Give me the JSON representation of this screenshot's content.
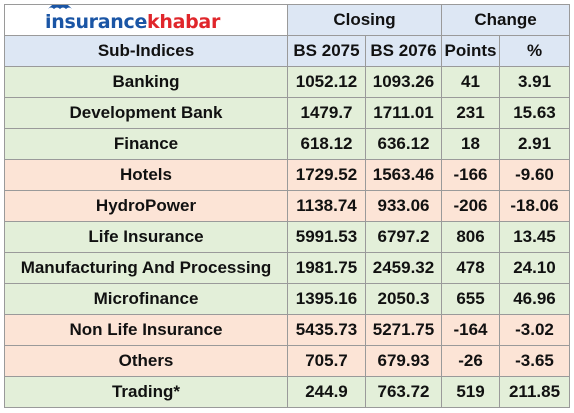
{
  "logo": {
    "part1": "insurance",
    "part2": "khabar",
    "colors": {
      "part1": "#1a55a5",
      "part2": "#e0262b"
    }
  },
  "header": {
    "group_closing": "Closing",
    "group_change": "Change",
    "col_subindices": "Sub-Indices",
    "col_bs2075": "BS 2075",
    "col_bs2076": "BS 2076",
    "col_points": "Points",
    "col_percent": "%"
  },
  "colors": {
    "header_bg": "#dde7f4",
    "positive_row_bg": "#e3efd9",
    "negative_row_bg": "#fce4d6"
  },
  "rows": [
    {
      "name": "Banking",
      "bs2075": "1052.12",
      "bs2076": "1093.26",
      "points": "41",
      "percent": "3.91",
      "trend": "positive"
    },
    {
      "name": "Development Bank",
      "bs2075": "1479.7",
      "bs2076": "1711.01",
      "points": "231",
      "percent": "15.63",
      "trend": "positive"
    },
    {
      "name": "Finance",
      "bs2075": "618.12",
      "bs2076": "636.12",
      "points": "18",
      "percent": "2.91",
      "trend": "positive"
    },
    {
      "name": "Hotels",
      "bs2075": "1729.52",
      "bs2076": "1563.46",
      "points": "-166",
      "percent": "-9.60",
      "trend": "negative"
    },
    {
      "name": "HydroPower",
      "bs2075": "1138.74",
      "bs2076": "933.06",
      "points": "-206",
      "percent": "-18.06",
      "trend": "negative"
    },
    {
      "name": "Life Insurance",
      "bs2075": "5991.53",
      "bs2076": "6797.2",
      "points": "806",
      "percent": "13.45",
      "trend": "positive"
    },
    {
      "name": "Manufacturing And Processing",
      "bs2075": "1981.75",
      "bs2076": "2459.32",
      "points": "478",
      "percent": "24.10",
      "trend": "positive"
    },
    {
      "name": "Microfinance",
      "bs2075": "1395.16",
      "bs2076": "2050.3",
      "points": "655",
      "percent": "46.96",
      "trend": "positive"
    },
    {
      "name": "Non Life Insurance",
      "bs2075": "5435.73",
      "bs2076": "5271.75",
      "points": "-164",
      "percent": "-3.02",
      "trend": "negative"
    },
    {
      "name": "Others",
      "bs2075": "705.7",
      "bs2076": "679.93",
      "points": "-26",
      "percent": "-3.65",
      "trend": "negative"
    },
    {
      "name": "Trading*",
      "bs2075": "244.9",
      "bs2076": "763.72",
      "points": "519",
      "percent": "211.85",
      "trend": "positive"
    }
  ]
}
